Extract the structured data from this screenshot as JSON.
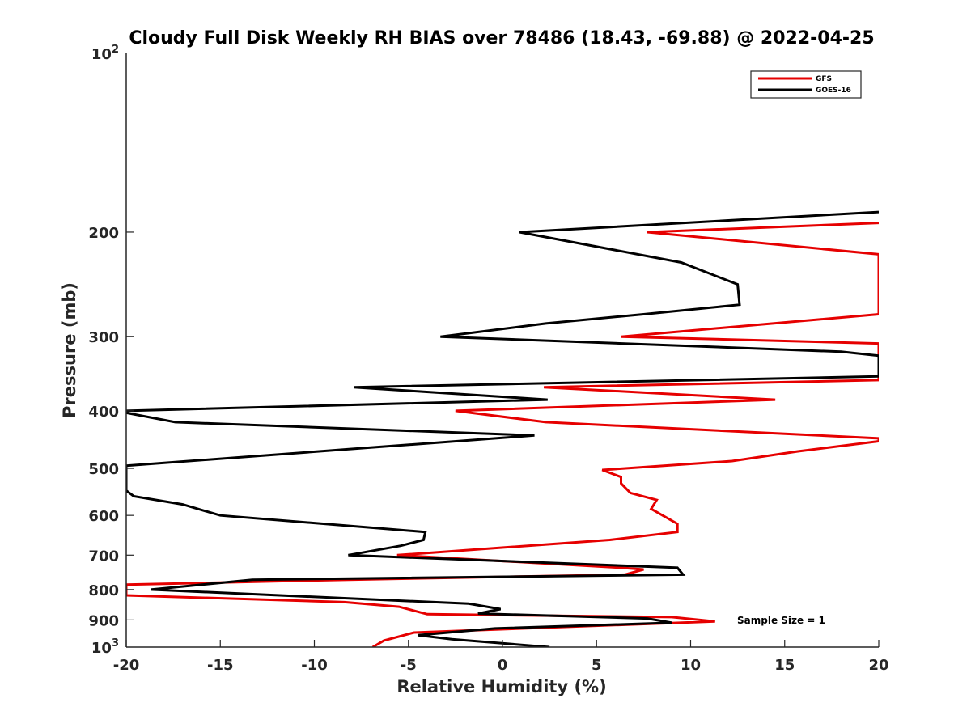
{
  "chart_data": {
    "type": "line",
    "title": "Cloudy Full Disk Weekly RH BIAS over 78486 (18.43, -69.88) @ 2022-04-25",
    "xlabel": "Relative Humidity (%)",
    "ylabel": "Pressure (mb)",
    "xlim": [
      -20,
      20
    ],
    "ylim": [
      100,
      1000
    ],
    "y_scale": "log",
    "y_reversed": true,
    "grid": false,
    "legend_position": "top-right",
    "x_ticks": [
      -20,
      -15,
      -10,
      -5,
      0,
      5,
      10,
      15,
      20
    ],
    "x_tick_labels": [
      "-20",
      "-15",
      "-10",
      "-5",
      "0",
      "5",
      "10",
      "15",
      "20"
    ],
    "y_ticks": [
      200,
      300,
      400,
      500,
      600,
      700,
      800,
      900
    ],
    "y_tick_labels": [
      "200",
      "300",
      "400",
      "500",
      "600",
      "700",
      "800",
      "900"
    ],
    "y_limit_labels": [
      {
        "value": 100,
        "base": "10",
        "exp": "2"
      },
      {
        "value": 1000,
        "base": "10",
        "exp": "3"
      }
    ],
    "annotation": "Sample Size = 1",
    "series": [
      {
        "name": "GFS",
        "color": "#e60000",
        "points": [
          [
            20,
            193
          ],
          [
            7.7,
            200
          ],
          [
            20,
            218
          ],
          [
            20,
            275
          ],
          [
            6.3,
            300
          ],
          [
            20,
            308
          ],
          [
            20,
            355
          ],
          [
            2.2,
            365
          ],
          [
            14.5,
            383
          ],
          [
            -2.5,
            400
          ],
          [
            2.3,
            418
          ],
          [
            20,
            445
          ],
          [
            20,
            450
          ],
          [
            15.7,
            468
          ],
          [
            12.2,
            486
          ],
          [
            5.3,
            503
          ],
          [
            6.3,
            517
          ],
          [
            6.3,
            530
          ],
          [
            6.8,
            550
          ],
          [
            8.2,
            565
          ],
          [
            7.9,
            585
          ],
          [
            9.3,
            620
          ],
          [
            9.3,
            640
          ],
          [
            5.7,
            660
          ],
          [
            -5.6,
            700
          ],
          [
            6.3,
            735
          ],
          [
            7.5,
            740
          ],
          [
            6.5,
            755
          ],
          [
            -8.2,
            770
          ],
          [
            -20,
            785
          ],
          [
            -20,
            818
          ],
          [
            -8.4,
            840
          ],
          [
            -5.5,
            855
          ],
          [
            -4,
            880
          ],
          [
            9,
            890
          ],
          [
            11.3,
            905
          ],
          [
            -4.7,
            945
          ],
          [
            -6.3,
            975
          ],
          [
            -6.9,
            1000
          ]
        ]
      },
      {
        "name": "GOES-16",
        "color": "#000000",
        "points": [
          [
            20,
            185
          ],
          [
            0.9,
            200
          ],
          [
            9.5,
            225
          ],
          [
            12.5,
            245
          ],
          [
            12.6,
            265
          ],
          [
            7.5,
            275
          ],
          [
            2.3,
            285
          ],
          [
            -3.3,
            300
          ],
          [
            18,
            318
          ],
          [
            20,
            323
          ],
          [
            20,
            350
          ],
          [
            -7.9,
            365
          ],
          [
            2.4,
            383
          ],
          [
            -20,
            400
          ],
          [
            -20,
            403
          ],
          [
            -17.4,
            418
          ],
          [
            1.7,
            440
          ],
          [
            -7.3,
            462
          ],
          [
            -20,
            495
          ],
          [
            -20,
            545
          ],
          [
            -19.6,
            557
          ],
          [
            -17,
            575
          ],
          [
            -15,
            600
          ],
          [
            -4.1,
            640
          ],
          [
            -4.2,
            660
          ],
          [
            -5.4,
            675
          ],
          [
            -8.2,
            700
          ],
          [
            9.3,
            735
          ],
          [
            9.6,
            755
          ],
          [
            -13.3,
            770
          ],
          [
            -18.7,
            800
          ],
          [
            -1.8,
            845
          ],
          [
            -0.1,
            863
          ],
          [
            -1.3,
            878
          ],
          [
            7.7,
            895
          ],
          [
            9,
            910
          ],
          [
            -0.4,
            930
          ],
          [
            -4.5,
            955
          ],
          [
            -2.7,
            970
          ],
          [
            2.5,
            1000
          ]
        ]
      }
    ]
  }
}
